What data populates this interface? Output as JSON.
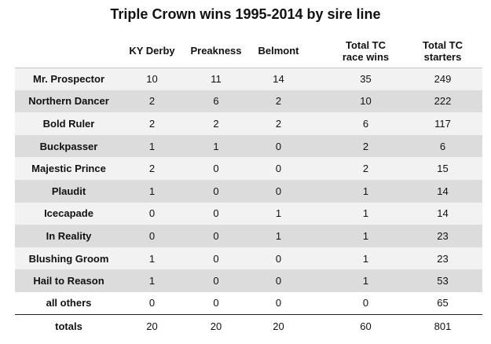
{
  "title": "Triple Crown wins 1995-2014 by sire line",
  "columns": {
    "ky_derby": "KY Derby",
    "preakness": "Preakness",
    "belmont": "Belmont",
    "total_race_wins_line1": "Total TC",
    "total_race_wins_line2": "race wins",
    "total_starters_line1": "Total TC",
    "total_starters_line2": "starters"
  },
  "rows": [
    {
      "sire_line": "Mr. Prospector",
      "ky_derby": "10",
      "preakness": "11",
      "belmont": "14",
      "total_race_wins": "35",
      "total_starters": "249"
    },
    {
      "sire_line": "Northern Dancer",
      "ky_derby": "2",
      "preakness": "6",
      "belmont": "2",
      "total_race_wins": "10",
      "total_starters": "222"
    },
    {
      "sire_line": "Bold Ruler",
      "ky_derby": "2",
      "preakness": "2",
      "belmont": "2",
      "total_race_wins": "6",
      "total_starters": "117"
    },
    {
      "sire_line": "Buckpasser",
      "ky_derby": "1",
      "preakness": "1",
      "belmont": "0",
      "total_race_wins": "2",
      "total_starters": "6"
    },
    {
      "sire_line": "Majestic Prince",
      "ky_derby": "2",
      "preakness": "0",
      "belmont": "0",
      "total_race_wins": "2",
      "total_starters": "15"
    },
    {
      "sire_line": "Plaudit",
      "ky_derby": "1",
      "preakness": "0",
      "belmont": "0",
      "total_race_wins": "1",
      "total_starters": "14"
    },
    {
      "sire_line": "Icecapade",
      "ky_derby": "0",
      "preakness": "0",
      "belmont": "1",
      "total_race_wins": "1",
      "total_starters": "14"
    },
    {
      "sire_line": "In Reality",
      "ky_derby": "0",
      "preakness": "0",
      "belmont": "1",
      "total_race_wins": "1",
      "total_starters": "23"
    },
    {
      "sire_line": "Blushing Groom",
      "ky_derby": "1",
      "preakness": "0",
      "belmont": "0",
      "total_race_wins": "1",
      "total_starters": "23"
    },
    {
      "sire_line": "Hail to Reason",
      "ky_derby": "1",
      "preakness": "0",
      "belmont": "0",
      "total_race_wins": "1",
      "total_starters": "53"
    },
    {
      "sire_line": "all others",
      "ky_derby": "0",
      "preakness": "0",
      "belmont": "0",
      "total_race_wins": "0",
      "total_starters": "65"
    }
  ],
  "totals": {
    "label": "totals",
    "ky_derby": "20",
    "preakness": "20",
    "belmont": "20",
    "total_race_wins": "60",
    "total_starters": "801"
  },
  "colors": {
    "row_shade_dark": "#dcdcdc",
    "row_shade_light": "#f2f2f2",
    "rule": "#222222"
  }
}
